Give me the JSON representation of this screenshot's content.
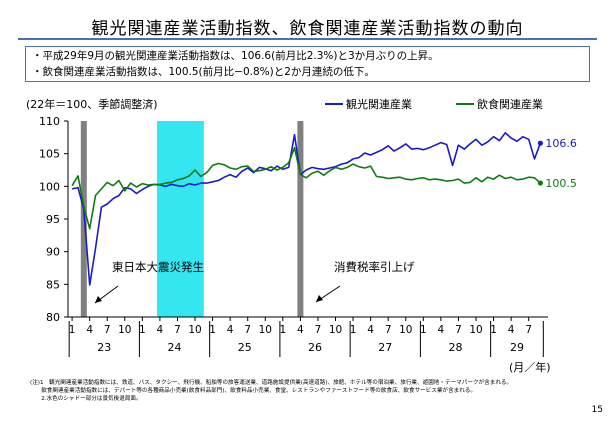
{
  "page": {
    "title": "観光関連産業活動指数、飲食関連産業活動指数の動向",
    "bullets": [
      "・平成29年9月の観光関連産業活動指数は、106.6(前月比2.3%)と3か月ぶりの上昇。",
      "・飲食関連産業活動指数は、100.5(前月比−0.8%)と2か月連続の低下。"
    ],
    "notes": [
      "(注)1　観光関連産業活動指数には、鉄道、バス、タクシー、飛行機、船舶等の旅客運送業、道路施設提供業(高速道路)、旅館、ホテル等の宿泊業、旅行業、遊園地・テーマパークが含まれる。",
      "　　飲食関連産業活動指数には、デパート等の各種商品小売業(飲食料品部門)、飲食料品小売業、食堂、レストランやファーストフード等の飲食店、飲食サービス業が含まれる。",
      "　　2.水色のシャドー部分は景気後退局面。"
    ],
    "page_number": "15"
  },
  "chart_data": {
    "type": "line",
    "unit_label": "(22年＝100、季節調整済)",
    "x_unit_label": "(月／年)",
    "ylim": [
      80,
      110
    ],
    "y_ticks": [
      80,
      85,
      90,
      95,
      100,
      105,
      110
    ],
    "grid": false,
    "legend_position": "top-right",
    "x_start": "2011-01",
    "x_end": "2017-09",
    "month_tick_labels": [
      "1",
      "4",
      "7",
      "10"
    ],
    "year_labels": [
      {
        "label": "23",
        "start": "2011-01",
        "end": "2011-12"
      },
      {
        "label": "24",
        "start": "2012-01",
        "end": "2012-12"
      },
      {
        "label": "25",
        "start": "2013-01",
        "end": "2013-12"
      },
      {
        "label": "26",
        "start": "2014-01",
        "end": "2014-12"
      },
      {
        "label": "27",
        "start": "2015-01",
        "end": "2015-12"
      },
      {
        "label": "28",
        "start": "2016-01",
        "end": "2016-12"
      },
      {
        "label": "29",
        "start": "2017-01",
        "end": "2017-09"
      }
    ],
    "recession_shading": {
      "start": "2012-04",
      "end": "2012-11",
      "color": "#33e6f0"
    },
    "events": [
      {
        "label": "東日本大震災発生",
        "month": "2011-03",
        "color": "#808080"
      },
      {
        "label": "消費税率引上げ",
        "month": "2014-04",
        "color": "#808080"
      }
    ],
    "series": [
      {
        "name": "観光関連産業",
        "color": "#1a1acc",
        "end_label": "106.6",
        "values": [
          99.6,
          99.8,
          96.5,
          84.9,
          90.5,
          96.8,
          97.3,
          98.1,
          98.6,
          99.8,
          99.6,
          98.9,
          99.5,
          100.0,
          100.3,
          100.2,
          100.0,
          100.3,
          100.1,
          100.0,
          100.4,
          100.2,
          100.5,
          100.5,
          100.7,
          100.9,
          101.4,
          101.8,
          101.4,
          102.3,
          102.8,
          102.1,
          102.9,
          102.7,
          102.4,
          103.1,
          102.6,
          102.9,
          107.9,
          101.8,
          102.5,
          102.9,
          102.7,
          102.6,
          102.8,
          103.0,
          103.4,
          103.6,
          104.2,
          104.4,
          105.1,
          104.8,
          105.2,
          105.6,
          106.2,
          105.4,
          105.9,
          106.5,
          105.7,
          105.8,
          105.6,
          105.9,
          106.3,
          106.7,
          106.4,
          103.2,
          106.3,
          105.7,
          106.5,
          107.2,
          106.3,
          106.8,
          107.6,
          107.0,
          108.2,
          107.4,
          106.9,
          107.6,
          107.2,
          104.2,
          106.6
        ]
      },
      {
        "name": "飲食関連産業",
        "color": "#127a12",
        "end_label": "100.5",
        "values": [
          100.1,
          101.6,
          96.9,
          93.5,
          98.6,
          99.6,
          100.6,
          100.1,
          100.9,
          99.3,
          100.5,
          99.9,
          100.4,
          100.2,
          100.3,
          100.3,
          100.5,
          100.6,
          101.0,
          101.2,
          101.6,
          102.5,
          101.5,
          102.1,
          103.2,
          103.5,
          103.3,
          102.8,
          102.6,
          103.0,
          103.1,
          102.3,
          102.4,
          102.6,
          103.0,
          102.5,
          102.9,
          103.6,
          105.9,
          101.8,
          101.3,
          102.0,
          102.3,
          101.7,
          102.4,
          102.9,
          102.6,
          102.9,
          103.4,
          103.0,
          102.8,
          103.1,
          101.5,
          101.4,
          101.2,
          101.3,
          101.4,
          101.1,
          101.0,
          101.2,
          101.3,
          101.0,
          101.1,
          101.0,
          100.8,
          100.9,
          101.1,
          100.5,
          100.6,
          101.3,
          100.7,
          101.4,
          101.1,
          101.7,
          101.2,
          101.4,
          101.0,
          101.1,
          101.4,
          101.3,
          100.5
        ]
      }
    ]
  }
}
